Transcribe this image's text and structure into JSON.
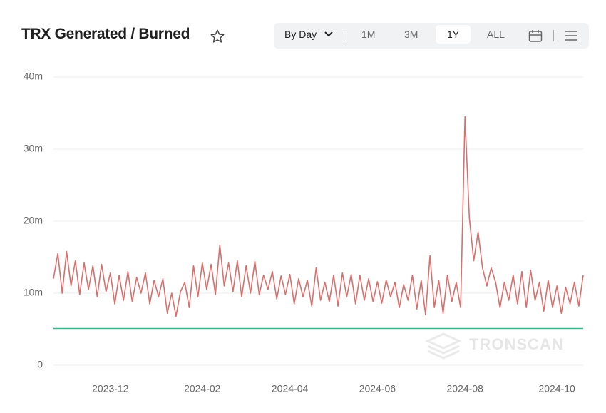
{
  "ui": {
    "title": "TRX Generated / Burned",
    "controls": {
      "interval": "By Day",
      "ranges": [
        "1M",
        "3M",
        "1Y",
        "ALL"
      ]
    },
    "watermark": "TRONSCAN"
  },
  "chart_data": {
    "type": "line",
    "categories": [
      null,
      null,
      null,
      null,
      null,
      null,
      null,
      null,
      null,
      null,
      null,
      null,
      null,
      "2023-12",
      null,
      null,
      null,
      null,
      null,
      null,
      null,
      null,
      null,
      null,
      null,
      null,
      null,
      null,
      null,
      null,
      null,
      null,
      null,
      null,
      "2024-02",
      null,
      null,
      null,
      null,
      null,
      null,
      null,
      null,
      null,
      null,
      null,
      null,
      null,
      null,
      null,
      null,
      null,
      null,
      null,
      "2024-04",
      null,
      null,
      null,
      null,
      null,
      null,
      null,
      null,
      null,
      null,
      null,
      null,
      null,
      null,
      null,
      null,
      null,
      null,
      null,
      "2024-06",
      null,
      null,
      null,
      null,
      null,
      null,
      null,
      null,
      null,
      null,
      null,
      null,
      null,
      null,
      null,
      null,
      null,
      null,
      null,
      "2024-08",
      null,
      null,
      null,
      null,
      null,
      null,
      null,
      null,
      null,
      null,
      null,
      null,
      null,
      null,
      null,
      null,
      null,
      null,
      null,
      null,
      "2024-10",
      null,
      null,
      null,
      null,
      null,
      null
    ],
    "series": [
      {
        "name": "Burned",
        "color": "#d9706e",
        "values": [
          12,
          15.5,
          10,
          15.8,
          11,
          14.5,
          9.8,
          14.2,
          10.5,
          13.8,
          9.5,
          14,
          10.2,
          12.8,
          8.5,
          12.5,
          9,
          13,
          8.8,
          12.2,
          10,
          12.8,
          8.5,
          11.8,
          9.5,
          12,
          7.2,
          10,
          6.8,
          10.2,
          11.5,
          8,
          13.8,
          9.5,
          14.2,
          10.5,
          14,
          9.8,
          16.7,
          11,
          14.2,
          10.2,
          14.5,
          9.5,
          13.8,
          10,
          14.4,
          9.8,
          12.5,
          10.5,
          13,
          9.2,
          12.4,
          9.8,
          12.6,
          8.5,
          12,
          9.5,
          11.8,
          8.2,
          13.5,
          9,
          11.5,
          8.8,
          12.5,
          8.2,
          12.8,
          9.5,
          12.6,
          8.5,
          12.5,
          9,
          12,
          8.8,
          11.6,
          8.6,
          11.8,
          9.5,
          11.5,
          8,
          11.2,
          9,
          12.5,
          7.8,
          11.8,
          7,
          15.2,
          8,
          11.8,
          7.2,
          12.5,
          8.8,
          11.5,
          8,
          34.5,
          20.5,
          14.5,
          18.5,
          13.5,
          11,
          13.5,
          11.5,
          8,
          11.5,
          9,
          12.5,
          8.5,
          13,
          8,
          13.2,
          9,
          11.5,
          7.5,
          11.8,
          8,
          11,
          7.2,
          10.8,
          8.5,
          11.5,
          8.2,
          12.5
        ]
      },
      {
        "name": "Generated",
        "color": "#3fb58a",
        "values": [
          5.1,
          5.1,
          5.1,
          5.1,
          5.1,
          5.1,
          5.1,
          5.1,
          5.1,
          5.1,
          5.1,
          5.1,
          5.1,
          5.1,
          5.1,
          5.1,
          5.1,
          5.1,
          5.1,
          5.1,
          5.1,
          5.1,
          5.1,
          5.1,
          5.1,
          5.1,
          5.1,
          5.1,
          5.1,
          5.1,
          5.1,
          5.1,
          5.1,
          5.1,
          5.1,
          5.1,
          5.1,
          5.1,
          5.1,
          5.1,
          5.1,
          5.1,
          5.1,
          5.1,
          5.1,
          5.1,
          5.1,
          5.1,
          5.1,
          5.1,
          5.1,
          5.1,
          5.1,
          5.1,
          5.1,
          5.1,
          5.1,
          5.1,
          5.1,
          5.1,
          5.1,
          5.1,
          5.1,
          5.1,
          5.1,
          5.1,
          5.1,
          5.1,
          5.1,
          5.1,
          5.1,
          5.1,
          5.1,
          5.1,
          5.1,
          5.1,
          5.1,
          5.1,
          5.1,
          5.1,
          5.1,
          5.1,
          5.1,
          5.1,
          5.1,
          5.1,
          5.1,
          5.1,
          5.1,
          5.1,
          5.1,
          5.1,
          5.1,
          5.1,
          5.1,
          5.1,
          5.1,
          5.1,
          5.1,
          5.1,
          5.1,
          5.1,
          5.1,
          5.1,
          5.1,
          5.1,
          5.1,
          5.1,
          5.1,
          5.1,
          5.1,
          5.1,
          5.1,
          5.1,
          5.1,
          5.1,
          5.1,
          5.1,
          5.1,
          5.1,
          5.1,
          5.1
        ]
      }
    ],
    "ylim": [
      0,
      40
    ],
    "yticks": [
      0,
      {
        "value": 10,
        "label": "10m"
      },
      {
        "value": 20,
        "label": "20m"
      },
      {
        "value": 30,
        "label": "30m"
      },
      {
        "value": 40,
        "label": "40m"
      }
    ],
    "grid": true
  }
}
